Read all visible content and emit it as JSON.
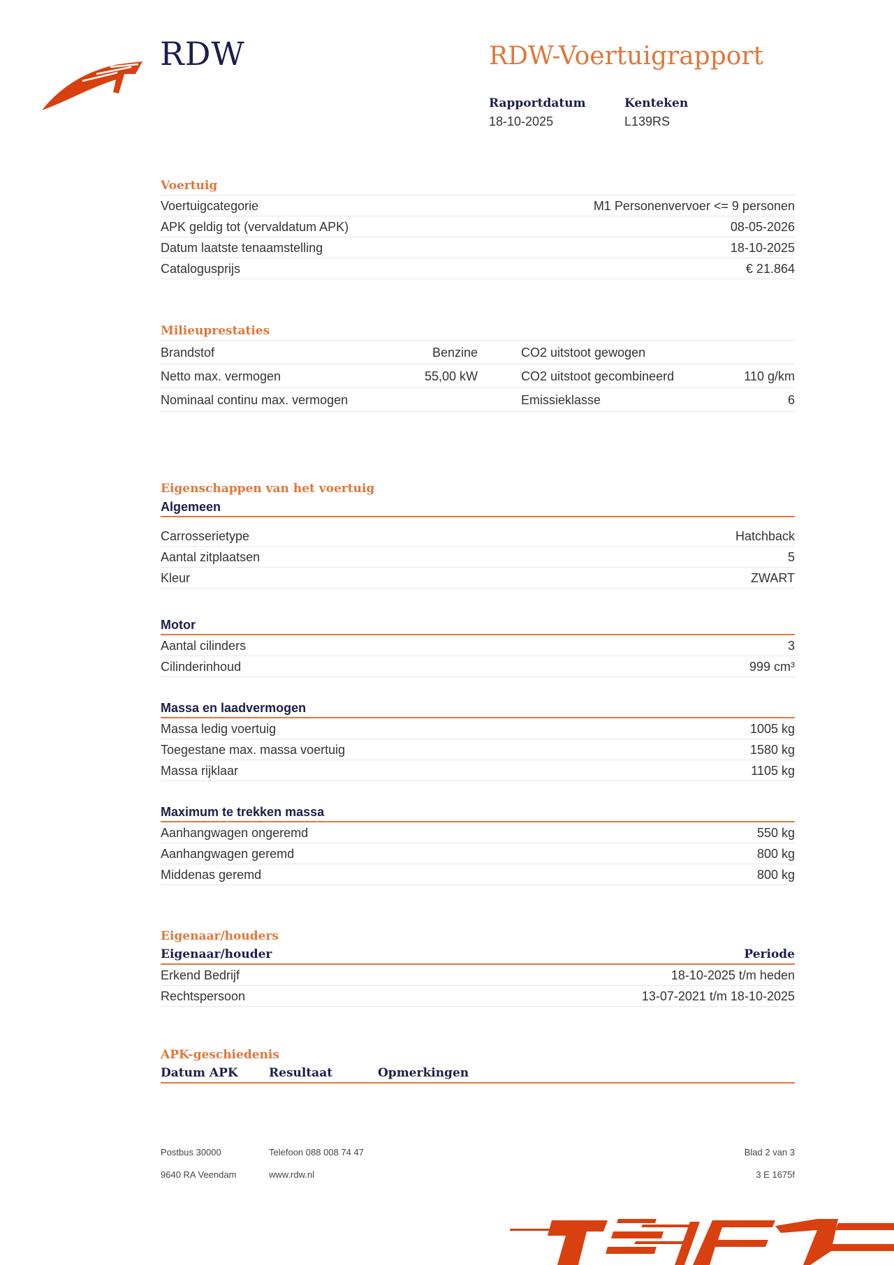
{
  "header": {
    "brand": "RDW",
    "title": "RDW-Voertuigrapport",
    "report_date_label": "Rapportdatum",
    "report_date": "18-10-2025",
    "plate_label": "Kenteken",
    "plate": "L139RS",
    "brand_color": "#d9400f",
    "accent_color": "#e0773a",
    "navy": "#1b1f4b"
  },
  "voertuig": {
    "heading": "Voertuig",
    "rows": [
      {
        "label": "Voertuigcategorie",
        "value": "M1 Personenvervoer <= 9 personen"
      },
      {
        "label": "APK geldig tot (vervaldatum APK)",
        "value": "08-05-2026"
      },
      {
        "label": "Datum laatste tenaamstelling",
        "value": "18-10-2025"
      },
      {
        "label": "Catalogusprijs",
        "value": "€ 21.864"
      }
    ]
  },
  "milieu": {
    "heading": "Milieuprestaties",
    "rows": [
      {
        "label": "Brandstof",
        "value": "Benzine",
        "label2": "CO2 uitstoot gewogen",
        "value2": ""
      },
      {
        "label": "Netto max. vermogen",
        "value": "55,00 kW",
        "label2": "CO2 uitstoot gecombineerd",
        "value2": "110 g/km"
      },
      {
        "label": "Nominaal continu max. vermogen",
        "value": "",
        "label2": "Emissieklasse",
        "value2": "6"
      }
    ]
  },
  "eigenschappen": {
    "heading": "Eigenschappen van het voertuig",
    "algemeen": {
      "title": "Algemeen",
      "rows": [
        {
          "label": "Carrosserietype",
          "value": "Hatchback"
        },
        {
          "label": "Aantal zitplaatsen",
          "value": "5"
        },
        {
          "label": "Kleur",
          "value": "ZWART"
        }
      ]
    },
    "motor": {
      "title": "Motor",
      "rows": [
        {
          "label": "Aantal cilinders",
          "value": "3"
        },
        {
          "label": "Cilinderinhoud",
          "value": "999 cm³"
        }
      ]
    },
    "massa": {
      "title": "Massa en laadvermogen",
      "rows": [
        {
          "label": "Massa ledig voertuig",
          "value": "1005 kg"
        },
        {
          "label": "Toegestane max. massa voertuig",
          "value": "1580 kg"
        },
        {
          "label": "Massa rijklaar",
          "value": "1105 kg"
        }
      ]
    },
    "trekken": {
      "title": "Maximum te trekken massa",
      "rows": [
        {
          "label": "Aanhangwagen ongeremd",
          "value": "550 kg"
        },
        {
          "label": "Aanhangwagen geremd",
          "value": "800 kg"
        },
        {
          "label": "Middenas geremd",
          "value": "800 kg"
        }
      ]
    }
  },
  "eigenaar": {
    "heading": "Eigenaar/houders",
    "col1": "Eigenaar/houder",
    "col2": "Periode",
    "rows": [
      {
        "label": "Erkend Bedrijf",
        "value": "18-10-2025 t/m heden"
      },
      {
        "label": "Rechtspersoon",
        "value": "13-07-2021 t/m 18-10-2025"
      }
    ]
  },
  "apk": {
    "heading": "APK-geschiedenis",
    "cols": [
      "Datum APK",
      "Resultaat",
      "Opmerkingen"
    ]
  },
  "footer": {
    "address1": "Postbus 30000",
    "address2": "9640 RA Veendam",
    "phone": "Telefoon 088 008 74 47",
    "web": "www.rdw.nl",
    "page": "Blad 2 van 3",
    "code": "3 E 1675f"
  }
}
